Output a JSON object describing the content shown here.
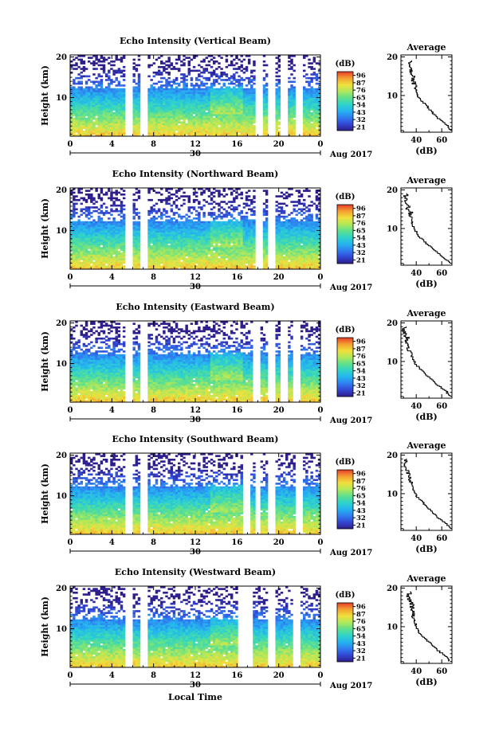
{
  "figure": {
    "xlabel": "Local Time",
    "date_label": "Aug 2017",
    "date_tick": "30"
  },
  "chart_data": [
    {
      "type": "heatmap",
      "title": "Echo Intensity (Vertical Beam)",
      "ylabel": "Height (km)",
      "xlabel": "Local Time",
      "x_ticks": [
        "0",
        "4",
        "8",
        "12",
        "16",
        "20",
        "0"
      ],
      "x_range": [
        0,
        24
      ],
      "y_ticks": [
        "10",
        "20"
      ],
      "ylim": [
        0.5,
        20.5
      ],
      "colorbar": {
        "label": "(dB)",
        "ticks": [
          "96",
          "87",
          "76",
          "65",
          "54",
          "43",
          "32",
          "21"
        ],
        "range": [
          21,
          96
        ]
      },
      "data_gaps_hours": [
        5.7,
        7.1,
        18.2,
        19.4,
        20.5,
        21.9
      ],
      "profile": {
        "title": "Average",
        "xlabel": "(dB)",
        "x_ticks": [
          "40",
          "60"
        ],
        "xlim": [
          28,
          68
        ],
        "y_ticks": [
          "10",
          "20"
        ],
        "heights_km": [
          1,
          2,
          3,
          4,
          5,
          6,
          7,
          8,
          9,
          10,
          11,
          12,
          13,
          14,
          15,
          16,
          17,
          18,
          19
        ],
        "values_db": [
          67,
          65,
          61,
          57,
          54,
          51,
          49,
          46,
          43,
          41,
          40,
          39,
          38,
          37,
          38,
          35,
          37,
          34,
          36
        ]
      }
    },
    {
      "type": "heatmap",
      "title": "Echo Intensity (Northward Beam)",
      "ylabel": "Height (km)",
      "xlabel": "Local Time",
      "x_ticks": [
        "0",
        "4",
        "8",
        "12",
        "16",
        "20",
        "0"
      ],
      "x_range": [
        0,
        24
      ],
      "y_ticks": [
        "10",
        "20"
      ],
      "ylim": [
        0.5,
        20.5
      ],
      "colorbar": {
        "label": "(dB)",
        "ticks": [
          "96",
          "87",
          "76",
          "65",
          "54",
          "43",
          "32",
          "21"
        ],
        "range": [
          21,
          96
        ]
      },
      "data_gaps_hours": [
        5.7,
        7.1,
        18.2,
        19.4
      ],
      "profile": {
        "title": "Average",
        "xlabel": "(dB)",
        "x_ticks": [
          "40",
          "60"
        ],
        "xlim": [
          28,
          68
        ],
        "y_ticks": [
          "10",
          "20"
        ],
        "heights_km": [
          1,
          2,
          3,
          4,
          5,
          6,
          7,
          8,
          9,
          10,
          11,
          12,
          13,
          14,
          15,
          16,
          17,
          18,
          19
        ],
        "values_db": [
          66,
          63,
          59,
          55,
          52,
          48,
          45,
          42,
          40,
          38,
          37,
          37,
          35,
          36,
          33,
          34,
          32,
          31,
          33
        ]
      }
    },
    {
      "type": "heatmap",
      "title": "Echo Intensity (Eastward Beam)",
      "ylabel": "Height (km)",
      "xlabel": "Local Time",
      "x_ticks": [
        "0",
        "4",
        "8",
        "12",
        "16",
        "20",
        "0"
      ],
      "x_range": [
        0,
        24
      ],
      "y_ticks": [
        "10",
        "20"
      ],
      "ylim": [
        0.5,
        20.5
      ],
      "colorbar": {
        "label": "(dB)",
        "ticks": [
          "96",
          "87",
          "76",
          "65",
          "54",
          "43",
          "32",
          "21"
        ],
        "range": [
          21,
          96
        ]
      },
      "data_gaps_hours": [
        5.7,
        7.1,
        17.9,
        19.3,
        20.6,
        21.8
      ],
      "profile": {
        "title": "Average",
        "xlabel": "(dB)",
        "x_ticks": [
          "40",
          "60"
        ],
        "xlim": [
          28,
          68
        ],
        "y_ticks": [
          "10",
          "20"
        ],
        "heights_km": [
          1,
          2,
          3,
          4,
          5,
          6,
          7,
          8,
          9,
          10,
          11,
          12,
          13,
          14,
          15,
          16,
          17,
          18,
          19
        ],
        "values_db": [
          66,
          64,
          60,
          56,
          53,
          49,
          46,
          43,
          40,
          38,
          37,
          36,
          34,
          35,
          32,
          33,
          31,
          30,
          32
        ]
      }
    },
    {
      "type": "heatmap",
      "title": "Echo Intensity (Southward Beam)",
      "ylabel": "Height (km)",
      "xlabel": "Local Time",
      "x_ticks": [
        "0",
        "4",
        "8",
        "12",
        "16",
        "20",
        "0"
      ],
      "x_range": [
        0,
        24
      ],
      "y_ticks": [
        "10",
        "20"
      ],
      "ylim": [
        0.5,
        20.5
      ],
      "colorbar": {
        "label": "(dB)",
        "ticks": [
          "96",
          "87",
          "76",
          "65",
          "54",
          "43",
          "32",
          "21"
        ],
        "range": [
          21,
          96
        ]
      },
      "data_gaps_hours": [
        5.7,
        7.1,
        16.9,
        18.0,
        19.4,
        21.9
      ],
      "profile": {
        "title": "Average",
        "xlabel": "(dB)",
        "x_ticks": [
          "40",
          "60"
        ],
        "xlim": [
          28,
          68
        ],
        "y_ticks": [
          "10",
          "20"
        ],
        "heights_km": [
          1,
          2,
          3,
          4,
          5,
          6,
          7,
          8,
          9,
          10,
          11,
          12,
          13,
          14,
          15,
          16,
          17,
          18,
          19
        ],
        "values_db": [
          66,
          64,
          60,
          56,
          53,
          50,
          47,
          44,
          41,
          39,
          38,
          37,
          36,
          35,
          34,
          33,
          32,
          31,
          32
        ]
      }
    },
    {
      "type": "heatmap",
      "title": "Echo Intensity (Westward Beam)",
      "ylabel": "Height (km)",
      "xlabel": "Local Time",
      "x_ticks": [
        "0",
        "4",
        "8",
        "12",
        "16",
        "20",
        "0"
      ],
      "x_range": [
        0,
        24
      ],
      "y_ticks": [
        "10",
        "20"
      ],
      "ylim": [
        0.5,
        20.5
      ],
      "colorbar": {
        "label": "(dB)",
        "ticks": [
          "96",
          "87",
          "76",
          "65",
          "54",
          "43",
          "32",
          "21"
        ],
        "range": [
          21,
          96
        ]
      },
      "data_gaps_hours": [
        5.7,
        7.1,
        16.5,
        17.1,
        19.3,
        21.8
      ],
      "profile": {
        "title": "Average",
        "xlabel": "(dB)",
        "x_ticks": [
          "40",
          "60"
        ],
        "xlim": [
          28,
          68
        ],
        "y_ticks": [
          "10",
          "20"
        ],
        "heights_km": [
          1,
          2,
          3,
          4,
          5,
          6,
          7,
          8,
          9,
          10,
          11,
          12,
          13,
          14,
          15,
          16,
          17,
          18,
          19
        ],
        "values_db": [
          66,
          64,
          60,
          56,
          53,
          50,
          46,
          43,
          41,
          40,
          39,
          38,
          37,
          38,
          36,
          37,
          35,
          34,
          35
        ]
      }
    }
  ],
  "colors": {
    "colormap": [
      "#2d1e8c",
      "#3346d3",
      "#2f7ef0",
      "#24b4f0",
      "#2fd3c8",
      "#5fe08c",
      "#b0e85a",
      "#f0e03c",
      "#f5a030",
      "#e63c2a"
    ],
    "axis": "#000000",
    "profile_line": "#000000",
    "background": "#ffffff"
  }
}
